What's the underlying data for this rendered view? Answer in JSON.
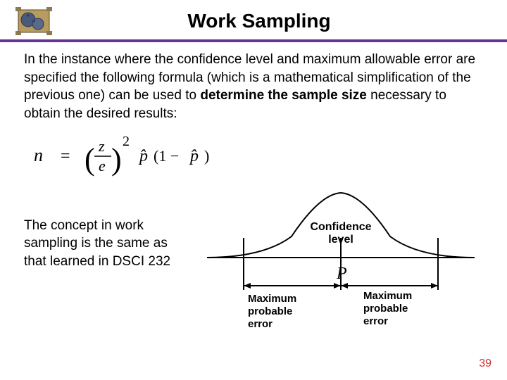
{
  "header": {
    "title": "Work Sampling"
  },
  "intro": {
    "part1": "In the instance where the confidence level and maximum allowable error are specified the following formula (which is a mathematical simplification of the previous one) can be used to ",
    "bold": "determine the sample size",
    "part2": " necessary to obtain the desired results:"
  },
  "formula": {
    "n": "n",
    "eq": "=",
    "z": "z",
    "e": "e",
    "exp": "2",
    "p1": "p̂",
    "paren1": "(1 −",
    "p2": "p̂",
    "paren2": ")"
  },
  "leftText": "The concept in work sampling is the same as that learned in DSCI 232",
  "diagram": {
    "confidence": "Confidence level",
    "maxLeft": "Maximum probable error",
    "maxRight": "Maximum probable error",
    "p": "P"
  },
  "pageNumber": "39",
  "colors": {
    "underline": "#663399",
    "pagenum": "#cc3333"
  }
}
